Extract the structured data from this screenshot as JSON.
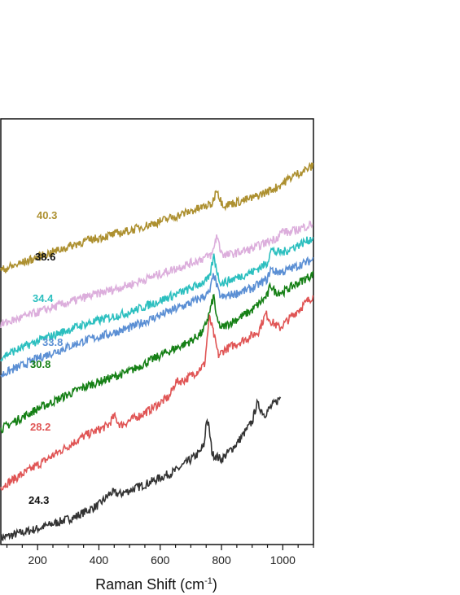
{
  "chart_data": {
    "type": "line",
    "title": "",
    "xlabel": "Raman Shift (cm",
    "xlabel_sup": "-1",
    "xlabel_close": ")",
    "ylabel": "",
    "xlim": [
      80,
      1100
    ],
    "xticks": [
      200,
      400,
      600,
      800,
      1000
    ],
    "xtick_labels": [
      "200",
      "400",
      "600",
      "800",
      "1000"
    ],
    "y_tick_labels_shown": false,
    "legend": "none",
    "grid": false,
    "series": [
      {
        "name": "24.3",
        "color": "#333333",
        "x_end": 995,
        "points": [
          [
            80,
            9
          ],
          [
            200,
            22
          ],
          [
            320,
            38
          ],
          [
            400,
            55
          ],
          [
            440,
            72
          ],
          [
            470,
            70
          ],
          [
            560,
            85
          ],
          [
            650,
            102
          ],
          [
            700,
            118
          ],
          [
            730,
            128
          ],
          [
            745,
            140
          ],
          [
            750,
            175
          ],
          [
            758,
            165
          ],
          [
            770,
            125
          ],
          [
            800,
            118
          ],
          [
            850,
            140
          ],
          [
            900,
            170
          ],
          [
            915,
            195
          ],
          [
            925,
            190
          ],
          [
            940,
            180
          ],
          [
            960,
            190
          ],
          [
            995,
            205
          ]
        ]
      },
      {
        "name": "28.2",
        "color": "#e05555",
        "x_end": 1100,
        "points": [
          [
            80,
            80
          ],
          [
            200,
            110
          ],
          [
            350,
            150
          ],
          [
            430,
            165
          ],
          [
            450,
            178
          ],
          [
            470,
            165
          ],
          [
            560,
            185
          ],
          [
            630,
            205
          ],
          [
            650,
            225
          ],
          [
            680,
            228
          ],
          [
            720,
            240
          ],
          [
            745,
            250
          ],
          [
            760,
            315
          ],
          [
            770,
            300
          ],
          [
            790,
            262
          ],
          [
            810,
            270
          ],
          [
            880,
            285
          ],
          [
            920,
            295
          ],
          [
            945,
            320
          ],
          [
            960,
            310
          ],
          [
            990,
            300
          ],
          [
            1050,
            325
          ],
          [
            1100,
            345
          ]
        ]
      },
      {
        "name": "30.8",
        "color": "#168016",
        "x_end": 1100,
        "points": [
          [
            80,
            160
          ],
          [
            200,
            188
          ],
          [
            350,
            218
          ],
          [
            500,
            240
          ],
          [
            600,
            262
          ],
          [
            700,
            282
          ],
          [
            740,
            295
          ],
          [
            760,
            320
          ],
          [
            775,
            345
          ],
          [
            785,
            310
          ],
          [
            800,
            300
          ],
          [
            900,
            325
          ],
          [
            950,
            345
          ],
          [
            960,
            360
          ],
          [
            975,
            350
          ],
          [
            1000,
            350
          ],
          [
            1100,
            375
          ]
        ]
      },
      {
        "name": "33.8",
        "color": "#5b8fd4",
        "x_end": 1100,
        "points": [
          [
            80,
            235
          ],
          [
            200,
            258
          ],
          [
            350,
            282
          ],
          [
            500,
            300
          ],
          [
            600,
            318
          ],
          [
            700,
            335
          ],
          [
            760,
            348
          ],
          [
            775,
            375
          ],
          [
            790,
            350
          ],
          [
            800,
            342
          ],
          [
            900,
            355
          ],
          [
            950,
            368
          ],
          [
            960,
            382
          ],
          [
            975,
            378
          ],
          [
            1000,
            378
          ],
          [
            1100,
            395
          ]
        ]
      },
      {
        "name": "34.4",
        "color": "#2cbfbf",
        "x_end": 1100,
        "points": [
          [
            80,
            260
          ],
          [
            200,
            282
          ],
          [
            350,
            305
          ],
          [
            500,
            322
          ],
          [
            600,
            338
          ],
          [
            700,
            355
          ],
          [
            760,
            368
          ],
          [
            775,
            400
          ],
          [
            790,
            370
          ],
          [
            800,
            362
          ],
          [
            900,
            378
          ],
          [
            950,
            390
          ],
          [
            960,
            410
          ],
          [
            975,
            405
          ],
          [
            1000,
            405
          ],
          [
            1100,
            425
          ]
        ]
      },
      {
        "name": "38.6",
        "color": "#dcaedc",
        "x_end": 1100,
        "points": [
          [
            80,
            305
          ],
          [
            200,
            322
          ],
          [
            350,
            342
          ],
          [
            500,
            360
          ],
          [
            600,
            375
          ],
          [
            700,
            390
          ],
          [
            770,
            402
          ],
          [
            785,
            430
          ],
          [
            795,
            410
          ],
          [
            810,
            400
          ],
          [
            900,
            410
          ],
          [
            980,
            425
          ],
          [
            1000,
            435
          ],
          [
            1020,
            432
          ],
          [
            1100,
            445
          ]
        ]
      },
      {
        "name": "40.3",
        "color": "#ad9030",
        "x_end": 1100,
        "points": [
          [
            80,
            380
          ],
          [
            200,
            398
          ],
          [
            350,
            420
          ],
          [
            500,
            435
          ],
          [
            600,
            448
          ],
          [
            700,
            462
          ],
          [
            770,
            472
          ],
          [
            785,
            495
          ],
          [
            795,
            478
          ],
          [
            810,
            470
          ],
          [
            900,
            480
          ],
          [
            980,
            495
          ],
          [
            1030,
            510
          ],
          [
            1100,
            525
          ]
        ]
      }
    ]
  }
}
